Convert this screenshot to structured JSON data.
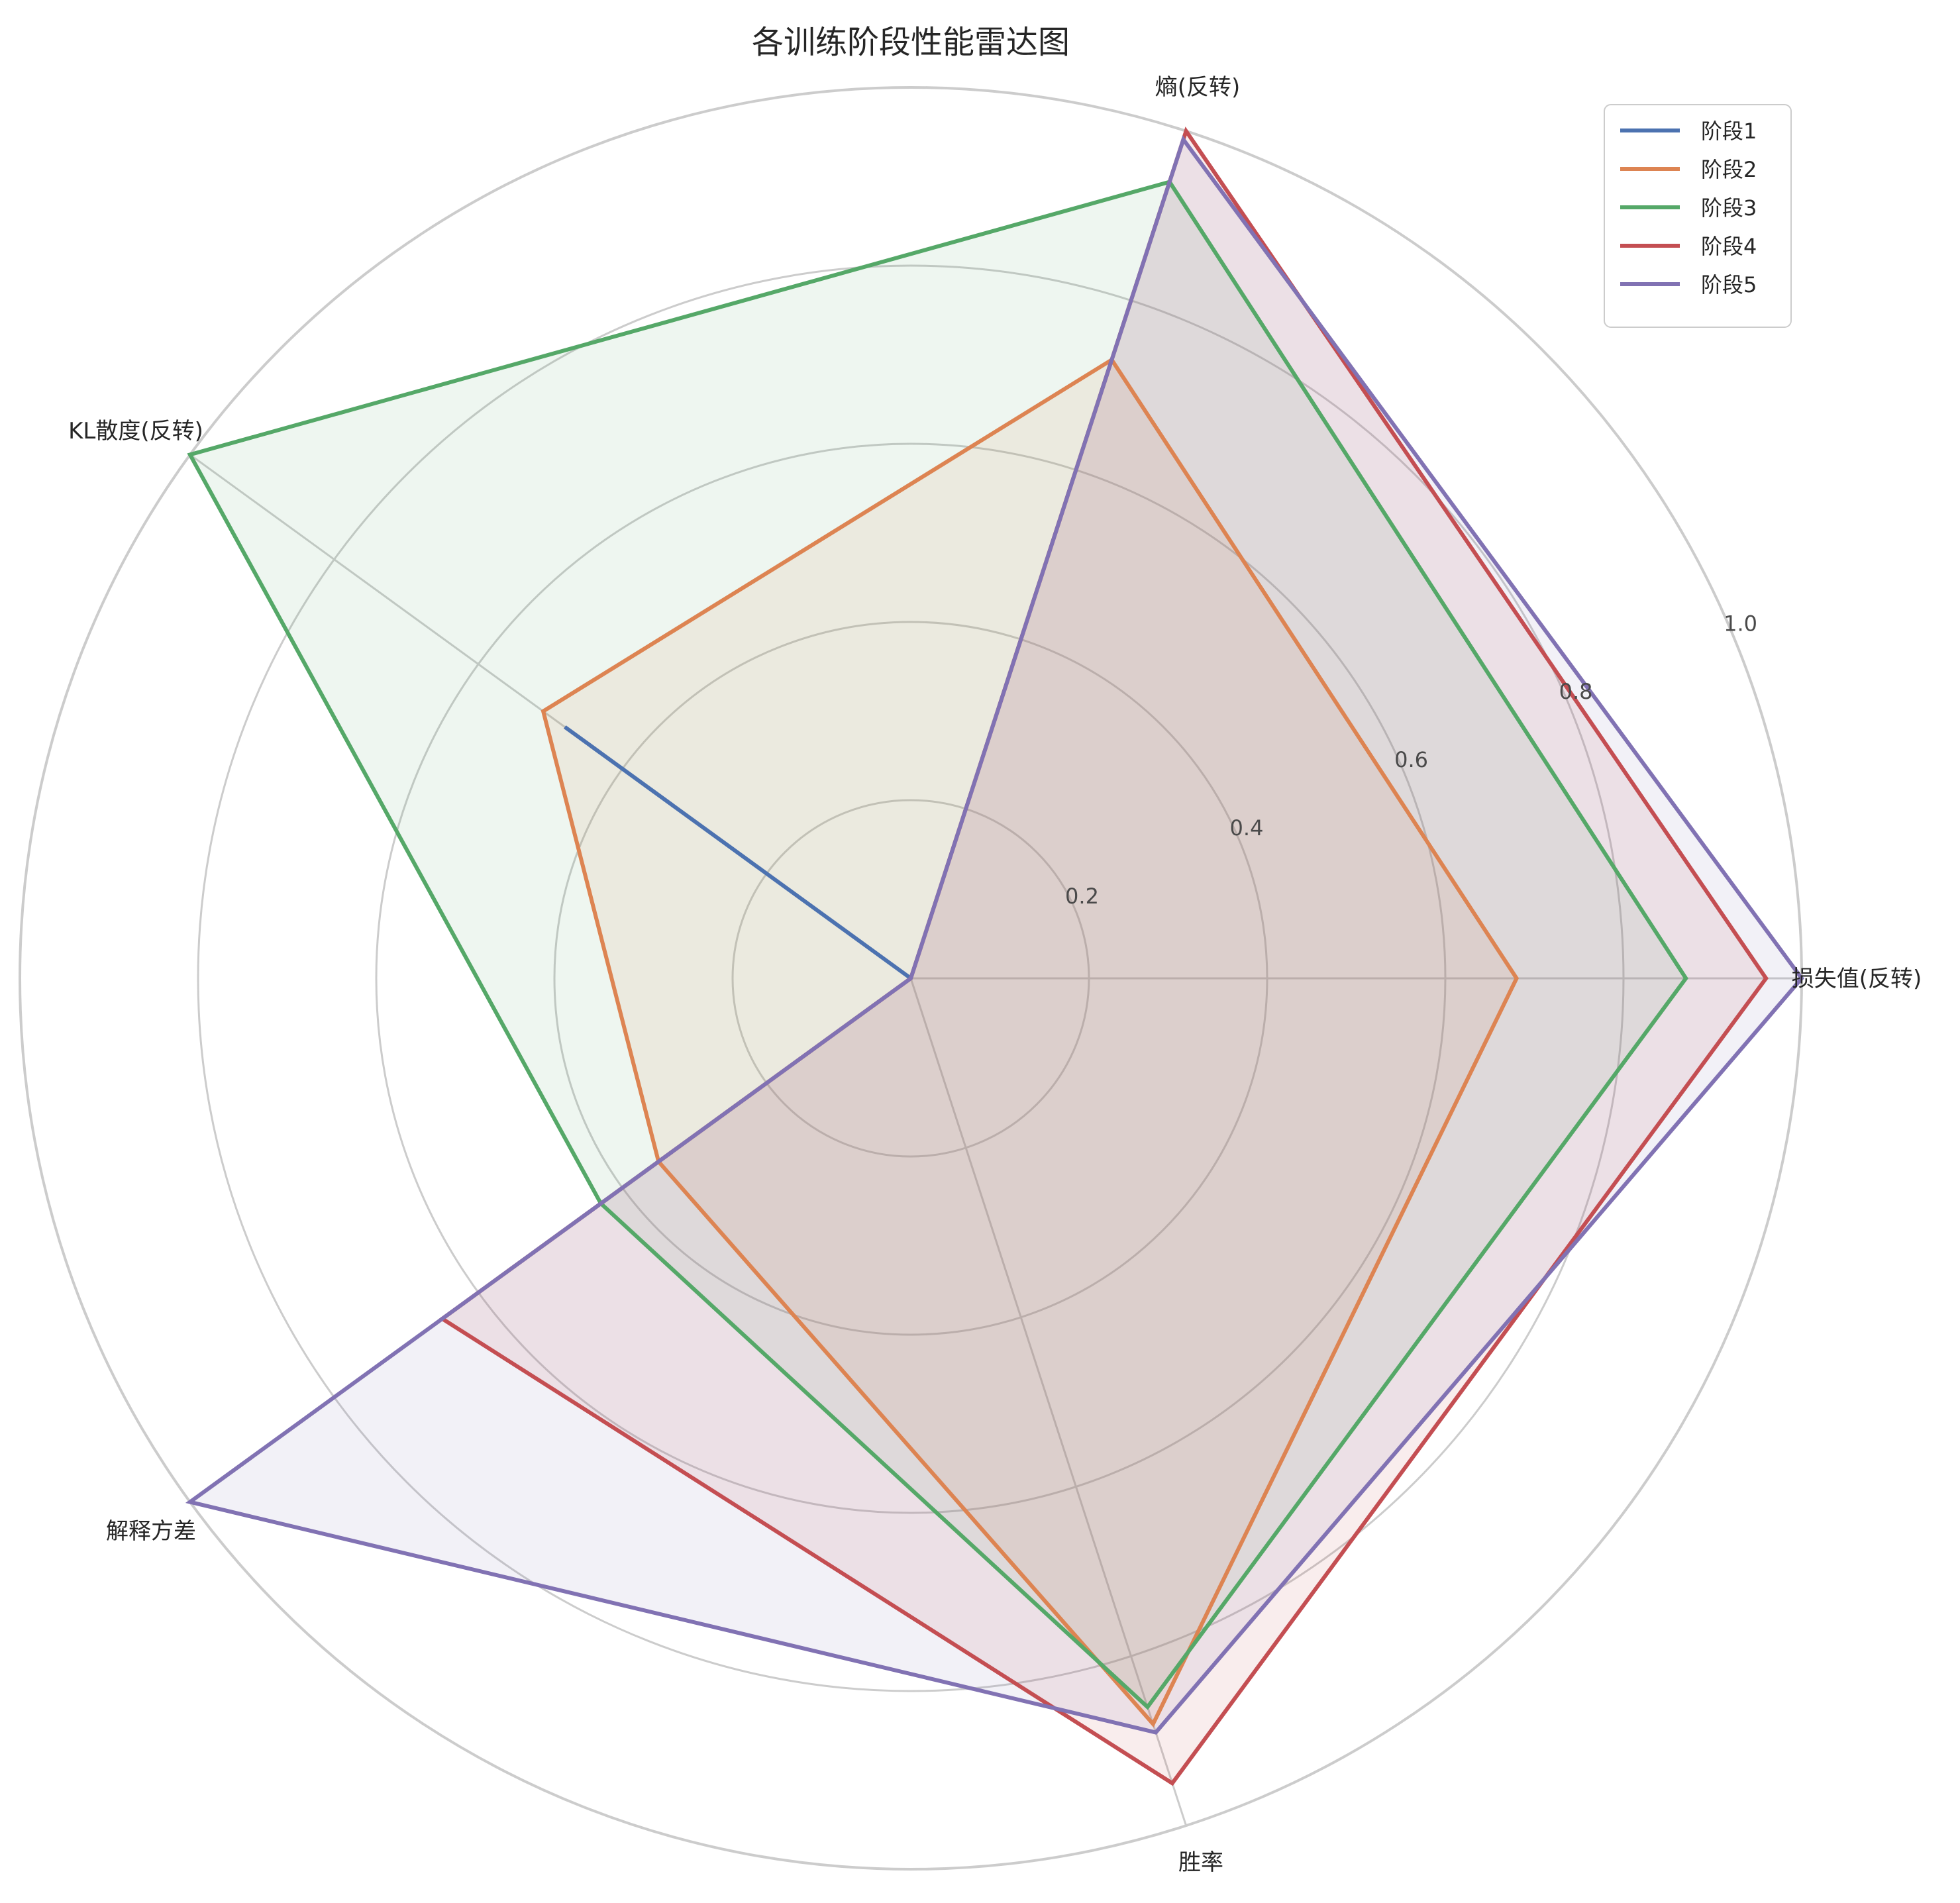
{
  "chart_data": {
    "type": "radar",
    "title": "各训练阶段性能雷达图",
    "axes": [
      "损失值(反转)",
      "熵(反转)",
      "KL散度(反转)",
      "解释方差",
      "胜率"
    ],
    "rlim": [
      0,
      1.0
    ],
    "r_ticks": [
      0.2,
      0.4,
      0.6,
      0.8,
      1.0
    ],
    "r_tick_labels": [
      "0.2",
      "0.4",
      "0.6",
      "0.8",
      "1.0"
    ],
    "grid": true,
    "legend_position": "top-right",
    "series": [
      {
        "name": "阶段1",
        "color": "#4c72b0",
        "values": [
          0.0,
          0.0,
          0.48,
          0.0,
          0.0
        ]
      },
      {
        "name": "阶段2",
        "color": "#dd8452",
        "values": [
          0.68,
          0.73,
          0.51,
          0.35,
          0.88
        ]
      },
      {
        "name": "阶段3",
        "color": "#55a868",
        "values": [
          0.87,
          0.94,
          1.0,
          0.43,
          0.86
        ]
      },
      {
        "name": "阶段4",
        "color": "#c44e52",
        "values": [
          0.96,
          1.0,
          0.0,
          0.65,
          0.95
        ]
      },
      {
        "name": "阶段5",
        "color": "#8172b3",
        "values": [
          1.0,
          0.99,
          0.0,
          1.0,
          0.89
        ]
      }
    ]
  }
}
